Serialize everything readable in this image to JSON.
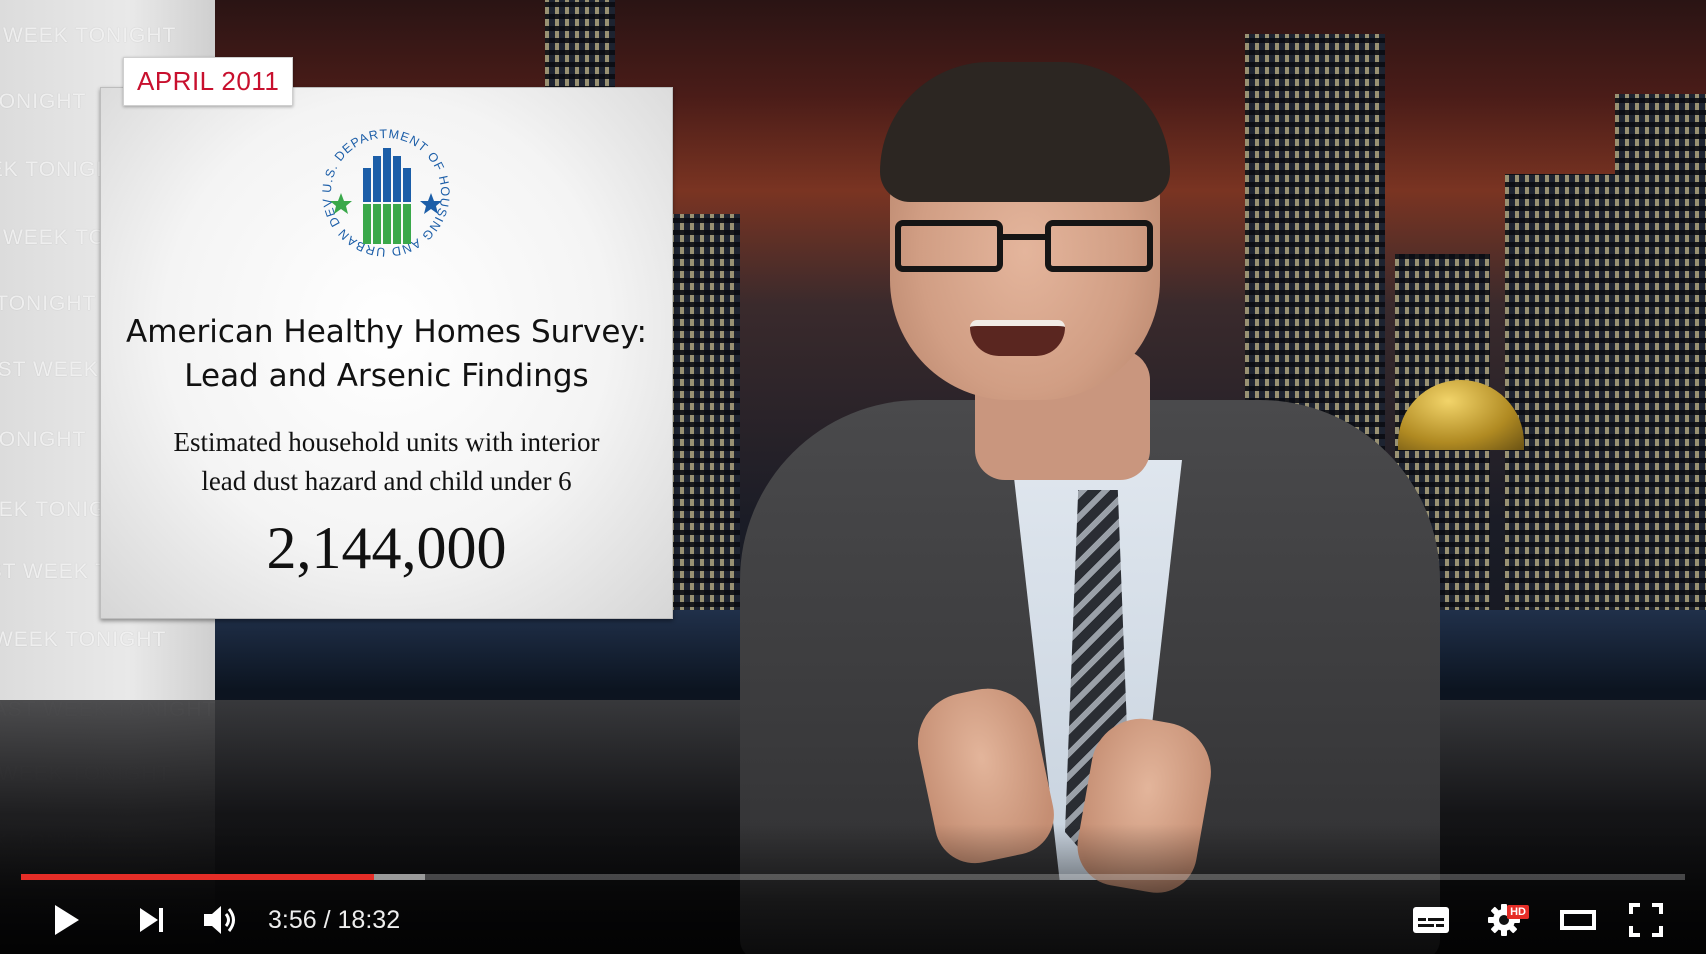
{
  "overlay": {
    "date_badge": "APRIL 2011",
    "seal": {
      "arc_text": "U.S. DEPARTMENT OF HOUSING AND URBAN DEVELOPMENT",
      "colors": {
        "blue": "#1c5ea8",
        "green": "#3aa84a"
      }
    },
    "title_line1": "American Healthy Homes Survey:",
    "title_line2": "Lead and Arsenic Findings",
    "subtitle_line1": "Estimated household units with interior",
    "subtitle_line2": "lead dust hazard and child under 6",
    "figure": "2,144,000"
  },
  "background": {
    "wall_watermark": "LAST WEEK TONIGHT"
  },
  "player": {
    "current_time": "3:56",
    "separator": "/",
    "duration": "18:32",
    "progress_fraction": 0.2122,
    "buffered_fraction": 0.243,
    "hd_label": "HD",
    "accent_color": "#e52d27",
    "buttons": {
      "play": "play-icon",
      "next": "next-icon",
      "volume": "volume-icon",
      "subtitles": "subtitles-icon",
      "settings": "gear-icon",
      "theater": "theater-mode-icon",
      "fullscreen": "fullscreen-icon"
    }
  }
}
